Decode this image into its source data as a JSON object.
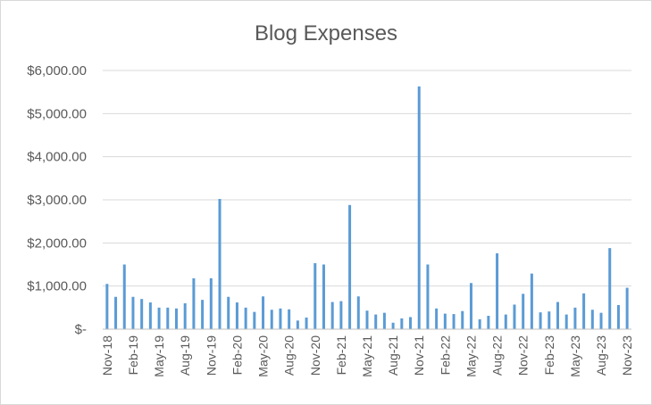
{
  "chart_data": {
    "type": "bar",
    "title": "Blog Expenses",
    "xlabel": "",
    "ylabel": "",
    "ylim": [
      0,
      6000
    ],
    "yticks": [
      {
        "value": 0,
        "label": "$-"
      },
      {
        "value": 1000,
        "label": "$1,000.00"
      },
      {
        "value": 2000,
        "label": "$2,000.00"
      },
      {
        "value": 3000,
        "label": "$3,000.00"
      },
      {
        "value": 4000,
        "label": "$4,000.00"
      },
      {
        "value": 5000,
        "label": "$5,000.00"
      },
      {
        "value": 6000,
        "label": "$6,000.00"
      }
    ],
    "xtick_labels": [
      {
        "index": 0,
        "label": "Nov-18"
      },
      {
        "index": 3,
        "label": "Feb-19"
      },
      {
        "index": 6,
        "label": "May-19"
      },
      {
        "index": 9,
        "label": "Aug-19"
      },
      {
        "index": 12,
        "label": "Nov-19"
      },
      {
        "index": 15,
        "label": "Feb-20"
      },
      {
        "index": 18,
        "label": "May-20"
      },
      {
        "index": 21,
        "label": "Aug-20"
      },
      {
        "index": 24,
        "label": "Nov-20"
      },
      {
        "index": 27,
        "label": "Feb-21"
      },
      {
        "index": 30,
        "label": "May-21"
      },
      {
        "index": 33,
        "label": "Aug-21"
      },
      {
        "index": 36,
        "label": "Nov-21"
      },
      {
        "index": 39,
        "label": "Feb-22"
      },
      {
        "index": 42,
        "label": "May-22"
      },
      {
        "index": 45,
        "label": "Aug-22"
      },
      {
        "index": 48,
        "label": "Nov-22"
      },
      {
        "index": 51,
        "label": "Feb-23"
      },
      {
        "index": 54,
        "label": "May-23"
      },
      {
        "index": 57,
        "label": "Aug-23"
      },
      {
        "index": 60,
        "label": "Nov-23"
      }
    ],
    "categories": [
      "Nov-18",
      "Dec-18",
      "Jan-19",
      "Feb-19",
      "Mar-19",
      "Apr-19",
      "May-19",
      "Jun-19",
      "Jul-19",
      "Aug-19",
      "Sep-19",
      "Oct-19",
      "Nov-19",
      "Dec-19",
      "Jan-20",
      "Feb-20",
      "Mar-20",
      "Apr-20",
      "May-20",
      "Jun-20",
      "Jul-20",
      "Aug-20",
      "Sep-20",
      "Oct-20",
      "Nov-20",
      "Dec-20",
      "Jan-21",
      "Feb-21",
      "Mar-21",
      "Apr-21",
      "May-21",
      "Jun-21",
      "Jul-21",
      "Aug-21",
      "Sep-21",
      "Oct-21",
      "Nov-21",
      "Dec-21",
      "Jan-22",
      "Feb-22",
      "Mar-22",
      "Apr-22",
      "May-22",
      "Jun-22",
      "Jul-22",
      "Aug-22",
      "Sep-22",
      "Oct-22",
      "Nov-22",
      "Dec-22",
      "Jan-23",
      "Feb-23",
      "Mar-23",
      "Apr-23",
      "May-23",
      "Jun-23",
      "Jul-23",
      "Aug-23",
      "Sep-23",
      "Oct-23",
      "Nov-23"
    ],
    "values": [
      1050,
      750,
      1500,
      750,
      700,
      620,
      500,
      500,
      480,
      600,
      1180,
      680,
      1180,
      3020,
      750,
      620,
      500,
      400,
      760,
      450,
      480,
      460,
      200,
      270,
      1530,
      1500,
      630,
      650,
      2880,
      760,
      430,
      340,
      380,
      150,
      250,
      280,
      5630,
      1500,
      480,
      360,
      350,
      420,
      1070,
      230,
      310,
      1760,
      340,
      570,
      820,
      1290,
      390,
      410,
      630,
      340,
      500,
      830,
      450,
      380,
      1880,
      560,
      960
    ],
    "bar_color": "#5b9bd5",
    "grid": true
  }
}
